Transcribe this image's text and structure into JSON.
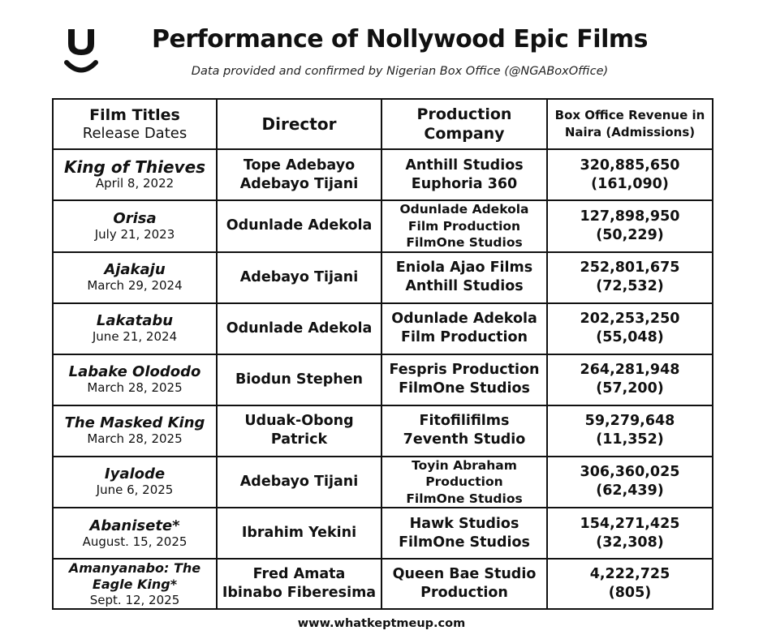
{
  "header": {
    "title": "Performance of Nollywood Epic Films",
    "subtitle": "Data provided and confirmed by Nigerian Box Office (@NGABoxOffice)"
  },
  "table": {
    "columns": {
      "title": "Film Titles",
      "title_sub": "Release Dates",
      "director": "Director",
      "production_1": "Production",
      "production_2": "Company",
      "revenue_1": "Box Office Revenue in",
      "revenue_2": "Naira (Admissions)"
    },
    "rows": [
      {
        "title": "King of Thieves",
        "date": "April 8, 2022",
        "director": [
          "Tope Adebayo",
          "Adebayo Tijani"
        ],
        "production": [
          "Anthill Studios",
          "Euphoria 360"
        ],
        "revenue": "320,885,650",
        "admissions": "(161,090)"
      },
      {
        "title": "Orisa",
        "date": "July 21, 2023",
        "director": [
          "Odunlade Adekola"
        ],
        "production": [
          "Odunlade Adekola",
          "Film Production",
          "FilmOne Studios"
        ],
        "revenue": "127,898,950",
        "admissions": "(50,229)"
      },
      {
        "title": "Ajakaju",
        "date": "March 29, 2024",
        "director": [
          "Adebayo Tijani"
        ],
        "production": [
          "Eniola Ajao Films",
          "Anthill Studios"
        ],
        "revenue": "252,801,675",
        "admissions": "(72,532)"
      },
      {
        "title": "Lakatabu",
        "date": "June 21, 2024",
        "director": [
          "Odunlade Adekola"
        ],
        "production": [
          "Odunlade Adekola",
          "Film Production"
        ],
        "revenue": "202,253,250",
        "admissions": "(55,048)"
      },
      {
        "title": "Labake Olododo",
        "date": "March 28, 2025",
        "director": [
          "Biodun Stephen"
        ],
        "production": [
          "Fespris Production",
          "FilmOne Studios"
        ],
        "revenue": "264,281,948",
        "admissions": "(57,200)"
      },
      {
        "title": "The Masked King",
        "date": "March 28, 2025",
        "director": [
          "Uduak-Obong",
          "Patrick"
        ],
        "production": [
          "Fitofilifilms",
          "7eventh Studio"
        ],
        "revenue": "59,279,648",
        "admissions": "(11,352)"
      },
      {
        "title": "Iyalode",
        "date": "June 6, 2025",
        "director": [
          "Adebayo Tijani"
        ],
        "production": [
          "Toyin Abraham",
          "Production",
          "FilmOne Studios"
        ],
        "revenue": "306,360,025",
        "admissions": "(62,439)"
      },
      {
        "title": "Abanisete*",
        "date": "August. 15, 2025",
        "director": [
          "Ibrahim Yekini"
        ],
        "production": [
          "Hawk Studios",
          "FilmOne Studios"
        ],
        "revenue": "154,271,425",
        "admissions": "(32,308)"
      },
      {
        "title": [
          "Amanyanabo: The",
          "Eagle King*"
        ],
        "date": "Sept. 12, 2025",
        "director": [
          "Fred Amata",
          "Ibinabo Fiberesima"
        ],
        "production": [
          "Queen Bae Studio",
          "Production"
        ],
        "revenue": "4,222,725",
        "admissions": "(805)"
      }
    ]
  },
  "footer": "www.whatkeptmeup.com",
  "logo_icon": "smile-u-logo-icon"
}
